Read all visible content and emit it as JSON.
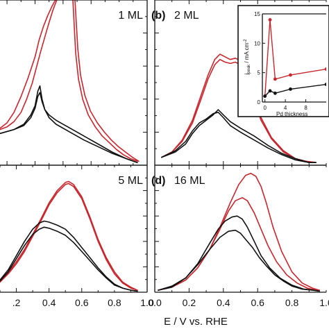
{
  "colors": {
    "pd": "#c8262c",
    "ref": "#111111"
  },
  "xlabel": "E / V vs. RHE",
  "chart_data": [
    {
      "type": "line",
      "panel": "a",
      "panel_label": "",
      "title": "1 ML",
      "xlim": [
        -0.05,
        1.0
      ],
      "ylim": [
        0,
        1.25
      ],
      "xticks": [],
      "xtick_labels": [],
      "series": [
        {
          "color": "pd",
          "x": [
            -0.05,
            0.0,
            0.05,
            0.1,
            0.15,
            0.2,
            0.23,
            0.26,
            0.29,
            0.32,
            0.345
          ],
          "y": [
            0.28,
            0.32,
            0.4,
            0.52,
            0.66,
            0.82,
            0.95,
            1.05,
            1.13,
            1.2,
            1.25
          ]
        },
        {
          "color": "pd",
          "x": [
            0.355,
            0.33,
            0.3,
            0.27,
            0.24,
            0.21,
            0.18,
            0.14,
            0.1,
            0.05,
            0.0,
            -0.05
          ],
          "y": [
            1.25,
            1.18,
            1.08,
            0.97,
            0.86,
            0.74,
            0.62,
            0.5,
            0.4,
            0.33,
            0.29,
            0.27
          ]
        },
        {
          "color": "pd",
          "x": [
            0.47,
            0.49,
            0.51,
            0.54,
            0.58,
            0.63,
            0.68,
            0.73,
            0.78,
            0.83,
            0.88,
            0.93
          ],
          "y": [
            1.25,
            0.85,
            0.65,
            0.5,
            0.38,
            0.29,
            0.22,
            0.17,
            0.12,
            0.08,
            0.05,
            0.03
          ]
        },
        {
          "color": "pd",
          "x": [
            0.485,
            0.505,
            0.525,
            0.555,
            0.595,
            0.645,
            0.695,
            0.745,
            0.795,
            0.845,
            0.895,
            0.94
          ],
          "y": [
            1.25,
            0.88,
            0.68,
            0.53,
            0.41,
            0.32,
            0.25,
            0.19,
            0.14,
            0.1,
            0.06,
            0.03
          ]
        },
        {
          "color": "ref",
          "x": [
            -0.05,
            0.05,
            0.12,
            0.17,
            0.2,
            0.22,
            0.235,
            0.25,
            0.27,
            0.3,
            0.35,
            0.45,
            0.55,
            0.65,
            0.75,
            0.85,
            0.93
          ],
          "y": [
            0.24,
            0.27,
            0.3,
            0.36,
            0.43,
            0.52,
            0.55,
            0.48,
            0.42,
            0.38,
            0.34,
            0.28,
            0.22,
            0.16,
            0.1,
            0.05,
            0.02
          ]
        },
        {
          "color": "ref",
          "x": [
            -0.05,
            0.05,
            0.12,
            0.17,
            0.2,
            0.22,
            0.235,
            0.25,
            0.27,
            0.3,
            0.35,
            0.45,
            0.55,
            0.65,
            0.75,
            0.85,
            0.93
          ],
          "y": [
            0.24,
            0.27,
            0.31,
            0.38,
            0.45,
            0.56,
            0.6,
            0.5,
            0.42,
            0.36,
            0.31,
            0.25,
            0.19,
            0.14,
            0.09,
            0.05,
            0.02
          ]
        }
      ]
    },
    {
      "type": "line",
      "panel": "b",
      "panel_label": "(b)",
      "title": "2 ML",
      "xlim": [
        0.0,
        1.0
      ],
      "ylim": [
        0,
        1.25
      ],
      "xticks": [],
      "xtick_labels": [],
      "series": [
        {
          "color": "pd",
          "x": [
            0.04,
            0.1,
            0.16,
            0.22,
            0.27,
            0.31,
            0.35,
            0.38,
            0.41,
            0.44,
            0.47,
            0.5,
            0.53,
            0.57,
            0.62,
            0.68,
            0.75,
            0.82,
            0.88,
            0.94
          ],
          "y": [
            0.06,
            0.1,
            0.18,
            0.32,
            0.5,
            0.65,
            0.76,
            0.8,
            0.78,
            0.77,
            0.78,
            0.76,
            0.68,
            0.52,
            0.34,
            0.2,
            0.1,
            0.05,
            0.03,
            0.02
          ]
        },
        {
          "color": "pd",
          "x": [
            0.04,
            0.1,
            0.16,
            0.22,
            0.27,
            0.31,
            0.35,
            0.38,
            0.41,
            0.44,
            0.47,
            0.5,
            0.53,
            0.57,
            0.62,
            0.68,
            0.75,
            0.82,
            0.88,
            0.94
          ],
          "y": [
            0.06,
            0.1,
            0.19,
            0.34,
            0.53,
            0.68,
            0.8,
            0.84,
            0.82,
            0.8,
            0.81,
            0.79,
            0.7,
            0.54,
            0.36,
            0.21,
            0.11,
            0.05,
            0.03,
            0.02
          ]
        },
        {
          "color": "ref",
          "x": [
            0.04,
            0.12,
            0.18,
            0.22,
            0.26,
            0.3,
            0.34,
            0.37,
            0.4,
            0.44,
            0.5,
            0.58,
            0.66,
            0.74,
            0.82,
            0.9,
            0.94
          ],
          "y": [
            0.06,
            0.1,
            0.16,
            0.24,
            0.3,
            0.34,
            0.38,
            0.42,
            0.38,
            0.33,
            0.28,
            0.22,
            0.15,
            0.09,
            0.05,
            0.02,
            0.02
          ]
        },
        {
          "color": "ref",
          "x": [
            0.04,
            0.12,
            0.18,
            0.22,
            0.26,
            0.3,
            0.34,
            0.37,
            0.4,
            0.44,
            0.5,
            0.58,
            0.66,
            0.74,
            0.82,
            0.9,
            0.94
          ],
          "y": [
            0.06,
            0.11,
            0.18,
            0.26,
            0.32,
            0.35,
            0.39,
            0.4,
            0.36,
            0.3,
            0.25,
            0.19,
            0.13,
            0.08,
            0.04,
            0.02,
            0.02
          ]
        }
      ]
    },
    {
      "type": "line",
      "panel": "c",
      "panel_label": "",
      "title": "5 ML",
      "xlim": [
        0.1,
        1.0
      ],
      "ylim": [
        0,
        1.25
      ],
      "xticks": [
        0.2,
        0.4,
        0.6,
        0.8,
        1.0
      ],
      "xtick_labels": [
        ".2",
        "0.4",
        "0.6",
        "0.8",
        "1.0"
      ],
      "series": [
        {
          "color": "pd",
          "x": [
            0.1,
            0.15,
            0.2,
            0.25,
            0.3,
            0.35,
            0.4,
            0.45,
            0.5,
            0.52,
            0.55,
            0.6,
            0.65,
            0.7,
            0.75,
            0.8,
            0.85,
            0.9,
            0.94
          ],
          "y": [
            0.1,
            0.18,
            0.28,
            0.4,
            0.55,
            0.7,
            0.86,
            0.98,
            1.06,
            1.07,
            1.04,
            0.92,
            0.72,
            0.5,
            0.32,
            0.18,
            0.09,
            0.04,
            0.02
          ]
        },
        {
          "color": "pd",
          "x": [
            0.1,
            0.15,
            0.2,
            0.25,
            0.3,
            0.35,
            0.4,
            0.45,
            0.5,
            0.52,
            0.55,
            0.6,
            0.65,
            0.7,
            0.75,
            0.8,
            0.85,
            0.9,
            0.94
          ],
          "y": [
            0.1,
            0.19,
            0.3,
            0.42,
            0.57,
            0.72,
            0.88,
            1.0,
            1.08,
            1.09,
            1.06,
            0.94,
            0.74,
            0.52,
            0.34,
            0.2,
            0.1,
            0.05,
            0.02
          ]
        },
        {
          "color": "ref",
          "x": [
            0.1,
            0.15,
            0.2,
            0.25,
            0.3,
            0.34,
            0.37,
            0.4,
            0.45,
            0.5,
            0.55,
            0.6,
            0.65,
            0.7,
            0.75,
            0.8,
            0.85,
            0.9,
            0.94
          ],
          "y": [
            0.12,
            0.22,
            0.36,
            0.5,
            0.62,
            0.68,
            0.7,
            0.69,
            0.66,
            0.62,
            0.54,
            0.44,
            0.34,
            0.24,
            0.15,
            0.08,
            0.04,
            0.02,
            0.01
          ]
        },
        {
          "color": "ref",
          "x": [
            0.1,
            0.15,
            0.2,
            0.25,
            0.3,
            0.34,
            0.37,
            0.4,
            0.45,
            0.5,
            0.55,
            0.6,
            0.65,
            0.7,
            0.75,
            0.8,
            0.85,
            0.9,
            0.94
          ],
          "y": [
            0.11,
            0.2,
            0.33,
            0.46,
            0.57,
            0.62,
            0.64,
            0.63,
            0.6,
            0.56,
            0.49,
            0.4,
            0.31,
            0.22,
            0.14,
            0.07,
            0.04,
            0.02,
            0.01
          ]
        }
      ]
    },
    {
      "type": "line",
      "panel": "d",
      "panel_label": "(d)",
      "title": "16 ML",
      "xlim": [
        0.0,
        1.0
      ],
      "ylim": [
        0,
        1.25
      ],
      "xticks": [
        0.0,
        0.2,
        0.4,
        0.6,
        0.8,
        1.0
      ],
      "xtick_labels": [
        "0.0",
        "0.2",
        "0.4",
        "0.6",
        "0.8",
        "1.0"
      ],
      "series": [
        {
          "color": "pd",
          "x": [
            0.02,
            0.1,
            0.18,
            0.25,
            0.32,
            0.38,
            0.44,
            0.49,
            0.53,
            0.56,
            0.59,
            0.62,
            0.65,
            0.69,
            0.74,
            0.8,
            0.86,
            0.92,
            0.96
          ],
          "y": [
            0.02,
            0.05,
            0.12,
            0.24,
            0.42,
            0.64,
            0.88,
            1.06,
            1.15,
            1.17,
            1.14,
            1.04,
            0.88,
            0.64,
            0.4,
            0.2,
            0.09,
            0.04,
            0.02
          ]
        },
        {
          "color": "pd",
          "x": [
            0.02,
            0.1,
            0.18,
            0.25,
            0.32,
            0.38,
            0.43,
            0.47,
            0.51,
            0.54,
            0.58,
            0.62,
            0.66,
            0.71,
            0.77,
            0.83,
            0.89,
            0.94,
            0.96
          ],
          "y": [
            0.02,
            0.05,
            0.12,
            0.24,
            0.42,
            0.62,
            0.8,
            0.9,
            0.93,
            0.9,
            0.78,
            0.62,
            0.46,
            0.3,
            0.17,
            0.09,
            0.04,
            0.02,
            0.02
          ]
        },
        {
          "color": "ref",
          "x": [
            0.02,
            0.1,
            0.18,
            0.25,
            0.32,
            0.37,
            0.41,
            0.45,
            0.48,
            0.51,
            0.54,
            0.58,
            0.62,
            0.67,
            0.73,
            0.8,
            0.87,
            0.93,
            0.96
          ],
          "y": [
            0.02,
            0.05,
            0.14,
            0.28,
            0.48,
            0.62,
            0.7,
            0.74,
            0.75,
            0.72,
            0.64,
            0.5,
            0.36,
            0.24,
            0.14,
            0.07,
            0.03,
            0.02,
            0.01
          ]
        },
        {
          "color": "ref",
          "x": [
            0.02,
            0.1,
            0.18,
            0.25,
            0.32,
            0.38,
            0.43,
            0.47,
            0.5,
            0.53,
            0.57,
            0.61,
            0.65,
            0.7,
            0.75,
            0.8,
            0.86,
            0.92,
            0.96
          ],
          "y": [
            0.02,
            0.06,
            0.14,
            0.27,
            0.42,
            0.54,
            0.6,
            0.61,
            0.58,
            0.52,
            0.44,
            0.34,
            0.26,
            0.17,
            0.11,
            0.06,
            0.03,
            0.02,
            0.01
          ]
        }
      ]
    },
    {
      "type": "line",
      "panel": "inset",
      "panel_label": "",
      "title": "",
      "xlim": [
        -0.5,
        12
      ],
      "ylim": [
        0,
        15
      ],
      "xticks": [
        0,
        4,
        8
      ],
      "xtick_labels": [
        "0",
        "4",
        "8"
      ],
      "yticks": [
        0,
        5,
        10,
        15
      ],
      "ytick_labels": [
        "0",
        "5",
        "10",
        "15"
      ],
      "xlabel": "Pd thickness",
      "ylabel": "j",
      "ylabel_sub": "peak",
      "ylabel_unit": " / mA cm",
      "ylabel_sup": "-2",
      "series": [
        {
          "color": "pd",
          "x": [
            0,
            1,
            2,
            5,
            12
          ],
          "y": [
            1.0,
            14.0,
            3.9,
            4.6,
            5.6
          ]
        },
        {
          "color": "ref",
          "x": [
            0,
            1,
            2,
            5,
            12
          ],
          "y": [
            1.0,
            1.9,
            1.5,
            2.2,
            3.0
          ]
        }
      ]
    }
  ]
}
